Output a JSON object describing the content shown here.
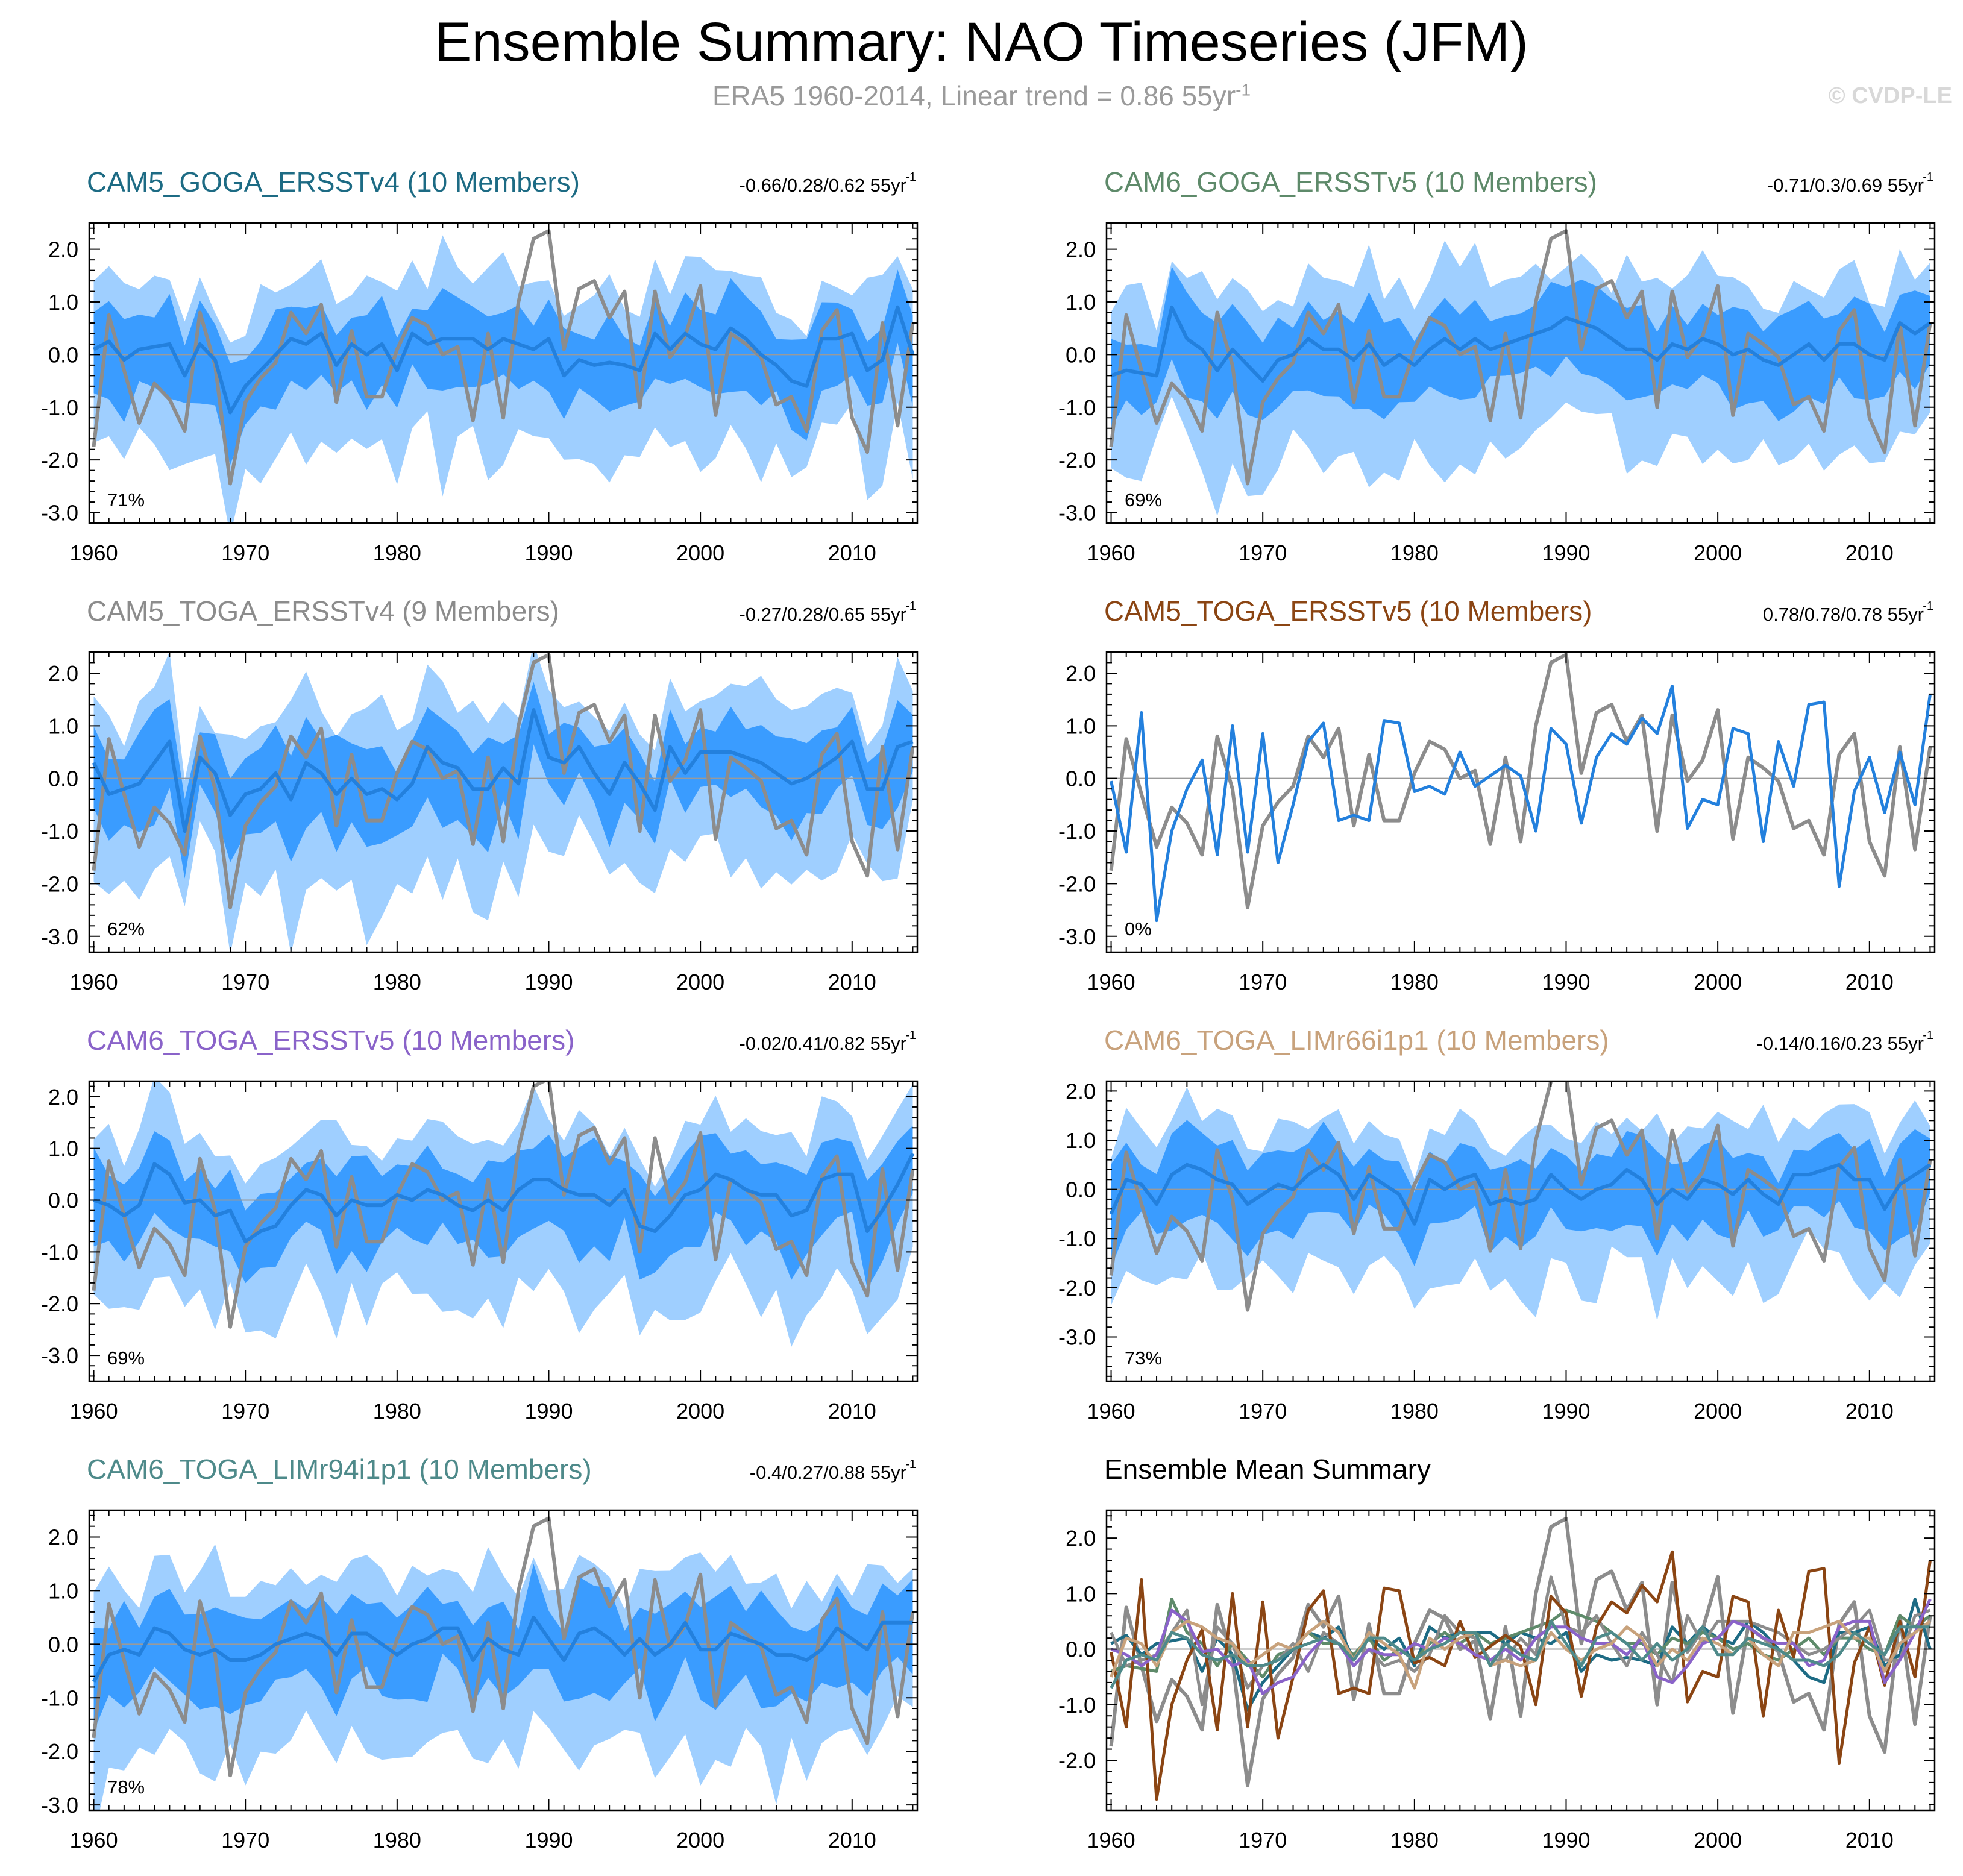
{
  "title": "Ensemble Summary: NAO Timeseries (JFM)",
  "subtitle": "ERA5 1960-2014, Linear trend = 0.86 55yr",
  "subtitle_sup": "-1",
  "copyright": "© CVDP-LE",
  "colors": {
    "band_outer": "#9fcfff",
    "band_inner": "#3a9cff",
    "ens_mean": "#2380dd",
    "obs": "#8c8c8c",
    "zero_line": "#9a9a9a"
  },
  "chart_data": {
    "type": "line",
    "x": [
      1960,
      1961,
      1962,
      1963,
      1964,
      1965,
      1966,
      1967,
      1968,
      1969,
      1970,
      1971,
      1972,
      1973,
      1974,
      1975,
      1976,
      1977,
      1978,
      1979,
      1980,
      1981,
      1982,
      1983,
      1984,
      1985,
      1986,
      1987,
      1988,
      1989,
      1990,
      1991,
      1992,
      1993,
      1994,
      1995,
      1996,
      1997,
      1998,
      1999,
      2000,
      2001,
      2002,
      2003,
      2004,
      2005,
      2006,
      2007,
      2008,
      2009,
      2010,
      2011,
      2012,
      2013,
      2014
    ],
    "xticks": [
      1960,
      1970,
      1980,
      1990,
      2000,
      2010
    ],
    "observations": {
      "name": "ERA5",
      "values": [
        -1.75,
        0.75,
        -0.3,
        -1.3,
        -0.55,
        -0.85,
        -1.45,
        0.8,
        -0.2,
        -2.45,
        -0.9,
        -0.45,
        -0.15,
        0.8,
        0.4,
        0.95,
        -0.9,
        0.45,
        -0.8,
        -0.8,
        0.1,
        0.7,
        0.55,
        0.0,
        0.15,
        -1.25,
        0.4,
        -1.2,
        1.0,
        2.2,
        2.35,
        0.1,
        1.25,
        1.4,
        0.7,
        1.2,
        -1.0,
        1.2,
        -0.05,
        0.35,
        1.3,
        -1.15,
        0.4,
        0.2,
        -0.05,
        -0.95,
        -0.8,
        -1.45,
        0.45,
        0.85,
        -1.2,
        -1.85,
        0.6,
        -1.35,
        0.6
      ]
    },
    "panels": [
      {
        "title": "CAM5_GOGA_ERSSTv4 (10 Members)",
        "title_color": "#1d6b84",
        "trend": "-0.66/0.28/0.62 55yr",
        "percent": "71%",
        "ylim": [
          -3.2,
          2.5
        ],
        "yticks": [
          -3.0,
          -2.0,
          -1.0,
          0.0,
          1.0,
          2.0
        ],
        "ytick_labels": [
          "-3.0",
          "-2.0",
          "-1.0",
          "0.0",
          "1.0",
          "2.0"
        ],
        "ens_mean": [
          0.1,
          0.25,
          -0.1,
          0.1,
          0.15,
          0.2,
          -0.4,
          0.2,
          -0.1,
          -1.1,
          -0.6,
          -0.3,
          0.0,
          0.3,
          0.2,
          0.4,
          -0.2,
          0.2,
          0.0,
          0.2,
          -0.3,
          0.4,
          0.2,
          0.3,
          0.3,
          0.3,
          0.1,
          0.3,
          0.2,
          0.1,
          0.3,
          -0.4,
          -0.1,
          -0.2,
          -0.15,
          -0.2,
          -0.3,
          0.4,
          0.1,
          0.4,
          0.2,
          0.1,
          0.5,
          0.3,
          0.0,
          -0.2,
          -0.5,
          -0.6,
          0.3,
          0.3,
          0.4,
          -0.3,
          -0.1,
          0.9,
          0.0
        ]
      },
      {
        "title": "CAM6_GOGA_ERSSTv5 (10 Members)",
        "title_color": "#5e8a6a",
        "trend": "-0.71/0.3/0.69 55yr",
        "percent": "69%",
        "ylim": [
          -3.2,
          2.5
        ],
        "yticks": [
          -3.0,
          -2.0,
          -1.0,
          0.0,
          1.0,
          2.0
        ],
        "ytick_labels": [
          "-3.0",
          "-2.0",
          "-1.0",
          "0.0",
          "1.0",
          "2.0"
        ],
        "ens_mean": [
          -0.4,
          -0.3,
          -0.35,
          -0.4,
          0.9,
          0.3,
          0.1,
          -0.3,
          0.1,
          -0.2,
          -0.5,
          -0.1,
          0.0,
          0.3,
          0.1,
          0.1,
          -0.1,
          0.2,
          -0.2,
          0.0,
          -0.2,
          0.1,
          0.3,
          0.1,
          0.3,
          0.1,
          0.2,
          0.3,
          0.4,
          0.5,
          0.7,
          0.6,
          0.5,
          0.3,
          0.1,
          0.1,
          -0.1,
          0.2,
          0.1,
          0.3,
          0.2,
          0.0,
          0.1,
          -0.1,
          -0.2,
          0.0,
          0.2,
          -0.1,
          0.2,
          0.2,
          0.0,
          -0.1,
          0.6,
          0.4,
          0.6
        ]
      },
      {
        "title": "CAM5_TOGA_ERSSTv4 (9 Members)",
        "title_color": "#8c8c8c",
        "trend": "-0.27/0.28/0.65 55yr",
        "percent": "62%",
        "ylim": [
          -3.3,
          2.4
        ],
        "yticks": [
          -3.0,
          -2.0,
          -1.0,
          0.0,
          1.0,
          2.0
        ],
        "ytick_labels": [
          "-3.0",
          "-2.0",
          "-1.0",
          "0.0",
          "1.0",
          "2.0"
        ],
        "ens_mean": [
          0.3,
          -0.3,
          -0.2,
          -0.1,
          0.3,
          0.7,
          -1.0,
          0.4,
          0.1,
          -0.7,
          -0.3,
          -0.2,
          0.1,
          -0.4,
          0.3,
          0.1,
          -0.3,
          0.0,
          -0.3,
          -0.2,
          -0.4,
          -0.1,
          0.6,
          0.3,
          0.2,
          -0.2,
          -0.2,
          0.2,
          -0.1,
          1.3,
          0.4,
          0.3,
          0.6,
          0.1,
          -0.3,
          0.3,
          -0.1,
          -0.6,
          0.6,
          0.1,
          0.5,
          0.5,
          0.5,
          0.4,
          0.3,
          0.1,
          -0.1,
          0.0,
          0.2,
          0.4,
          0.7,
          -0.2,
          -0.2,
          0.6,
          0.7
        ]
      },
      {
        "title": "CAM5_TOGA_ERSSTv5 (10 Members)",
        "title_color": "#8b4513",
        "trend": "0.78/0.78/0.78 55yr",
        "percent": "0%",
        "single_member": true,
        "ylim": [
          -3.3,
          2.4
        ],
        "yticks": [
          -3.0,
          -2.0,
          -1.0,
          0.0,
          1.0,
          2.0
        ],
        "ytick_labels": [
          "-3.0",
          "-2.0",
          "-1.0",
          "0.0",
          "1.0",
          "2.0"
        ],
        "ens_mean": [
          -0.05,
          -1.4,
          1.25,
          -2.7,
          -1.0,
          -0.2,
          0.35,
          -1.45,
          1.0,
          -1.4,
          0.85,
          -1.6,
          -0.5,
          0.7,
          1.05,
          -0.8,
          -0.7,
          -0.8,
          1.1,
          1.05,
          -0.25,
          -0.15,
          -0.3,
          0.5,
          -0.15,
          0.05,
          0.25,
          0.05,
          -1.0,
          0.95,
          0.65,
          -0.85,
          0.4,
          0.85,
          0.65,
          1.15,
          0.85,
          1.75,
          -0.95,
          -0.4,
          -0.5,
          0.95,
          0.85,
          -1.2,
          0.7,
          -0.15,
          1.4,
          1.45,
          -2.05,
          -0.25,
          0.4,
          -0.65,
          0.5,
          -0.5,
          1.6
        ]
      },
      {
        "title": "CAM6_TOGA_ERSSTv5 (10 Members)",
        "title_color": "#8a63c9",
        "trend": "-0.02/0.41/0.82 55yr",
        "percent": "69%",
        "ylim": [
          -3.5,
          2.3
        ],
        "yticks": [
          -3.0,
          -2.0,
          -1.0,
          0.0,
          1.0,
          2.0
        ],
        "ytick_labels": [
          "-3.0",
          "-2.0",
          "-1.0",
          "0.0",
          "1.0",
          "2.0"
        ],
        "ens_mean": [
          0.0,
          -0.1,
          -0.3,
          -0.1,
          0.7,
          0.5,
          -0.05,
          0.0,
          -0.3,
          -0.2,
          -0.8,
          -0.6,
          -0.5,
          -0.1,
          0.2,
          0.1,
          -0.3,
          0.0,
          -0.1,
          -0.1,
          0.1,
          0.0,
          0.2,
          0.1,
          -0.1,
          -0.2,
          0.0,
          -0.2,
          0.2,
          0.4,
          0.4,
          0.2,
          0.1,
          0.1,
          -0.1,
          0.2,
          -0.5,
          -0.6,
          -0.3,
          0.1,
          0.2,
          0.5,
          0.4,
          0.2,
          0.1,
          0.1,
          -0.3,
          -0.2,
          0.4,
          0.5,
          0.5,
          -0.6,
          -0.2,
          0.3,
          0.9
        ]
      },
      {
        "title": "CAM6_TOGA_LIMr66i1p1 (10 Members)",
        "title_color": "#c8a27c",
        "trend": "-0.14/0.16/0.23 55yr",
        "percent": "73%",
        "ylim": [
          -3.9,
          2.2
        ],
        "yticks": [
          -3.0,
          -2.0,
          -1.0,
          0.0,
          1.0,
          2.0
        ],
        "ytick_labels": [
          "-3.0",
          "-2.0",
          "-1.0",
          "0.0",
          "1.0",
          "2.0"
        ],
        "ens_mean": [
          -0.5,
          0.2,
          0.1,
          -0.3,
          0.3,
          0.5,
          0.4,
          0.2,
          0.1,
          -0.3,
          -0.1,
          0.1,
          0.0,
          0.3,
          0.5,
          0.3,
          -0.2,
          0.3,
          0.1,
          -0.1,
          -0.7,
          0.2,
          0.0,
          0.2,
          0.3,
          -0.3,
          -0.2,
          -0.3,
          -0.2,
          0.3,
          0.0,
          -0.2,
          0.0,
          0.1,
          0.4,
          0.2,
          -0.3,
          0.0,
          -0.2,
          0.2,
          0.1,
          -0.1,
          0.2,
          -0.1,
          -0.3,
          0.3,
          0.3,
          0.4,
          0.5,
          0.2,
          0.2,
          -0.4,
          0.1,
          0.3,
          0.5
        ]
      },
      {
        "title": "CAM6_TOGA_LIMr94i1p1 (10 Members)",
        "title_color": "#4e8a8a",
        "trend": "-0.4/0.27/0.88 55yr",
        "percent": "78%",
        "ylim": [
          -3.1,
          2.5
        ],
        "yticks": [
          -3.0,
          -2.0,
          -1.0,
          0.0,
          1.0,
          2.0
        ],
        "ytick_labels": [
          "-3.0",
          "-2.0",
          "-1.0",
          "0.0",
          "1.0",
          "2.0"
        ],
        "ens_mean": [
          -0.7,
          -0.2,
          -0.1,
          -0.2,
          0.3,
          0.2,
          -0.1,
          -0.2,
          -0.1,
          -0.3,
          -0.3,
          -0.2,
          0.0,
          0.1,
          0.2,
          0.1,
          -0.2,
          0.2,
          0.2,
          0.0,
          -0.2,
          0.0,
          0.1,
          0.3,
          0.3,
          -0.3,
          0.1,
          -0.1,
          -0.2,
          0.5,
          0.1,
          -0.3,
          0.2,
          0.3,
          0.1,
          -0.2,
          0.1,
          -0.2,
          0.0,
          0.4,
          -0.1,
          -0.1,
          0.2,
          0.1,
          0.0,
          -0.2,
          -0.2,
          -0.3,
          -0.1,
          0.3,
          0.1,
          -0.1,
          0.4,
          0.4,
          0.4
        ]
      },
      {
        "title": "Ensemble Mean Summary",
        "title_color": "#000000",
        "trend": "",
        "percent": "",
        "summary": true,
        "ylim": [
          -2.9,
          2.5
        ],
        "yticks": [
          -2.0,
          -1.0,
          0.0,
          1.0,
          2.0
        ],
        "ytick_labels": [
          "-2.0",
          "-1.0",
          "0.0",
          "1.0",
          "2.0"
        ]
      }
    ]
  }
}
